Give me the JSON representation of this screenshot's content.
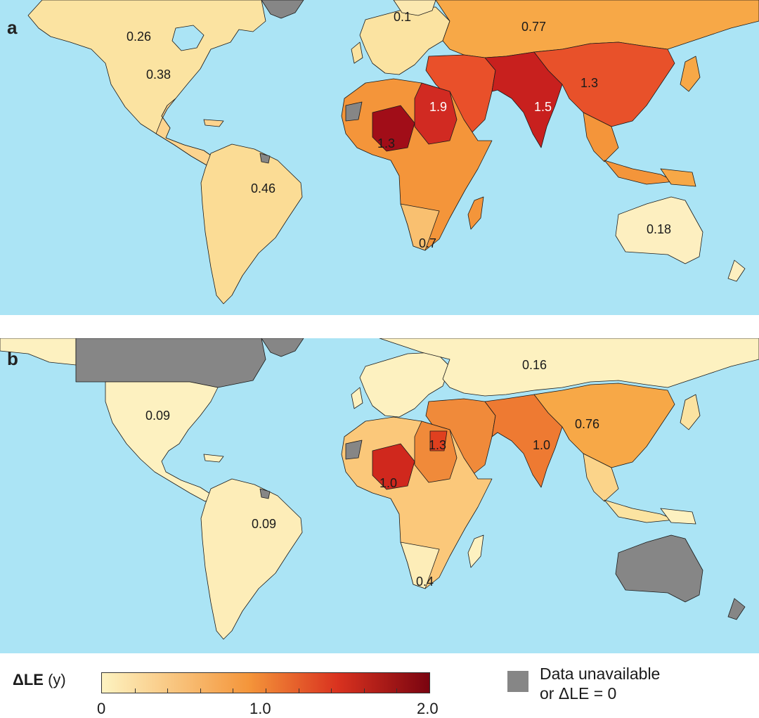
{
  "colors": {
    "ocean": "#abe4f5",
    "unavailable": "#868686",
    "scale_low": "#fdf3c1",
    "scale_mid": "#f4953a",
    "scale_high": "#7a0410"
  },
  "legend": {
    "title_symbol": "ΔLE",
    "title_unit": "(y)",
    "ticks": [
      "0",
      "1.0",
      "2.0"
    ],
    "unavailable_line1": "Data unavailable",
    "unavailable_line2": "or ΔLE = 0"
  },
  "panels": [
    {
      "letter": "a",
      "labels": [
        {
          "text": "0.26",
          "region": "Canada / Alaska"
        },
        {
          "text": "0.1",
          "region": "Scandinavia"
        },
        {
          "text": "0.77",
          "region": "Russia"
        },
        {
          "text": "0.38",
          "region": "United States"
        },
        {
          "text": "1.9",
          "region": "Egypt"
        },
        {
          "text": "1.5",
          "region": "India"
        },
        {
          "text": "1.3",
          "region": "China"
        },
        {
          "text": "1.3",
          "region": "West Africa"
        },
        {
          "text": "0.46",
          "region": "South America"
        },
        {
          "text": "0.7",
          "region": "Southern Africa"
        },
        {
          "text": "0.18",
          "region": "Australia"
        }
      ]
    },
    {
      "letter": "b",
      "labels": [
        {
          "text": "0.16",
          "region": "Russia"
        },
        {
          "text": "0.09",
          "region": "United States"
        },
        {
          "text": "0.76",
          "region": "China"
        },
        {
          "text": "1.3",
          "region": "Egypt"
        },
        {
          "text": "1.0",
          "region": "India"
        },
        {
          "text": "1.0",
          "region": "West Africa"
        },
        {
          "text": "0.09",
          "region": "South America"
        },
        {
          "text": "0.4",
          "region": "Southern Africa"
        }
      ]
    }
  ],
  "map_data": {
    "variable": "ΔLE",
    "unit": "y",
    "scale_range": [
      0,
      2.0
    ],
    "panels": {
      "a": {
        "Canada/Alaska": 0.26,
        "Scandinavia": 0.1,
        "Russia": 0.77,
        "United States": 0.38,
        "Egypt": 1.9,
        "India": 1.5,
        "China": 1.3,
        "West Africa": 1.3,
        "South America": 0.46,
        "Southern Africa": 0.7,
        "Australia": 0.18
      },
      "b": {
        "Russia": 0.16,
        "United States": 0.09,
        "China": 0.76,
        "Egypt": 1.3,
        "India": 1.0,
        "West Africa": 1.0,
        "South America": 0.09,
        "Southern Africa": 0.4
      }
    }
  }
}
